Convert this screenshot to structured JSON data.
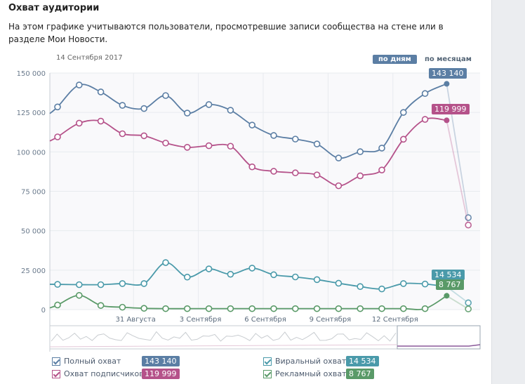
{
  "header": {
    "title": "Охват аудитории",
    "description": "На этом графике учитываются пользователи, просмотревшие записи сообщества на стене или в разделе Мои Новости.",
    "date_label": "14 Сентября 2017"
  },
  "period_toggle": {
    "by_days": "по дням",
    "by_months": "по месяцам",
    "selected": "по дням"
  },
  "colors": {
    "full": "#5b7ea4",
    "subscribers": "#b5528a",
    "viral": "#4a9aaa",
    "ads": "#5a9a68"
  },
  "chart_data": {
    "type": "line",
    "title": "Охват аудитории",
    "xlabel": "",
    "ylabel": "",
    "ylim": [
      0,
      150000
    ],
    "yticks": [
      0,
      25000,
      50000,
      75000,
      100000,
      125000,
      150000
    ],
    "ytick_labels": [
      "0",
      "25 000",
      "50 000",
      "75 000",
      "100 000",
      "125 000",
      "150 000"
    ],
    "x_tick_labels": [
      "31 Августа",
      "3 Сентября",
      "6 Сентября",
      "9 Сентября",
      "12 Сентября"
    ],
    "x_tick_indices": [
      4,
      7,
      10,
      13,
      16
    ],
    "grid": true,
    "legend_position": "bottom",
    "x": [
      "27 Aug",
      "28 Aug",
      "29 Aug",
      "30 Aug",
      "31 Aug",
      "1 Sep",
      "2 Sep",
      "3 Sep",
      "4 Sep",
      "5 Sep",
      "6 Sep",
      "7 Sep",
      "8 Sep",
      "9 Sep",
      "10 Sep",
      "11 Sep",
      "12 Sep",
      "13 Sep",
      "14 Sep",
      "15 Sep"
    ],
    "highlight_index": 18,
    "series": [
      {
        "name": "Полный охват",
        "key": "full",
        "values": [
          128500,
          142400,
          138000,
          129500,
          127500,
          135700,
          124600,
          130000,
          126400,
          117000,
          110400,
          108100,
          105000,
          96100,
          100100,
          102400,
          125000,
          137000,
          143140,
          58300
        ]
      },
      {
        "name": "Охват подписчиков",
        "key": "subscribers",
        "values": [
          109500,
          118200,
          119500,
          111500,
          110200,
          105600,
          102900,
          103900,
          103600,
          90500,
          87700,
          86700,
          85400,
          78500,
          84800,
          88500,
          108000,
          120600,
          119999,
          53600
        ]
      },
      {
        "name": "Виральный охват",
        "key": "viral",
        "values": [
          16000,
          15800,
          15800,
          16500,
          16500,
          29800,
          20600,
          25800,
          22400,
          26300,
          22100,
          20700,
          19000,
          16700,
          14600,
          13100,
          16500,
          16200,
          14534,
          4300
        ]
      },
      {
        "name": "Рекламный охват",
        "key": "ads",
        "values": [
          2900,
          9000,
          2600,
          1500,
          800,
          600,
          600,
          600,
          600,
          600,
          600,
          600,
          600,
          600,
          600,
          600,
          600,
          600,
          8767,
          400
        ]
      }
    ]
  },
  "legend": [
    {
      "label": "Полный охват",
      "value": "143 140",
      "key": "full",
      "checked": true
    },
    {
      "label": "Охват подписчиков",
      "value": "119 999",
      "key": "subscribers",
      "checked": true
    },
    {
      "label": "Виральный охват",
      "value": "14 534",
      "key": "viral",
      "checked": true
    },
    {
      "label": "Рекламный охват",
      "value": "8 767",
      "key": "ads",
      "checked": true
    }
  ],
  "tooltips": {
    "full": "143 140",
    "subscribers": "119 999",
    "viral": "14 534",
    "ads": "8 767"
  }
}
